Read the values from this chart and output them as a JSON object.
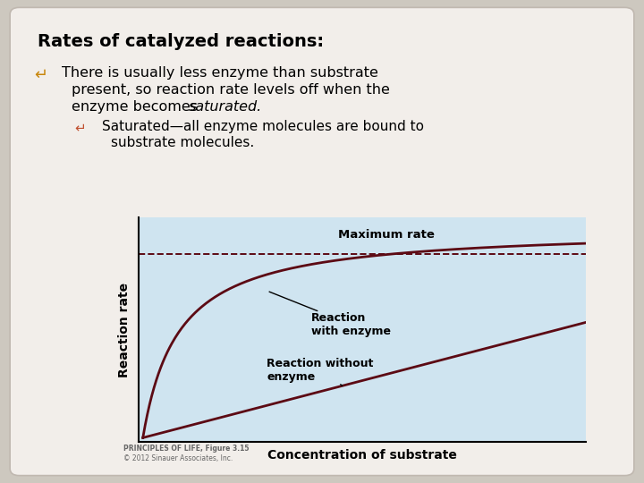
{
  "title": "Rates of catalyzed reactions:",
  "line1": "There is usually less enzyme than substrate",
  "line2": "present, so reaction rate levels off when the",
  "line3_normal": "enzyme becomes ",
  "line3_italic": "saturated.",
  "sub_line1": "Saturated—all enzyme molecules are bound to",
  "sub_line2": "substrate molecules.",
  "background_color": "#cdc8bf",
  "card_color": "#f2eeea",
  "plot_bg_color": "#cfe4f0",
  "curve_color": "#5c0a14",
  "xlabel": "Concentration of substrate",
  "ylabel": "Reaction rate",
  "max_rate_label": "Maximum rate",
  "enzyme_label": "Reaction\nwith enzyme",
  "no_enzyme_label": "Reaction without\nenzyme",
  "caption_line1": "PRINCIPLES OF LIFE, Figure 3.15",
  "caption_line2": "© 2012 Sinauer Associates, Inc.",
  "bullet_color": "#c8860a",
  "sub_bullet_color": "#c05030"
}
